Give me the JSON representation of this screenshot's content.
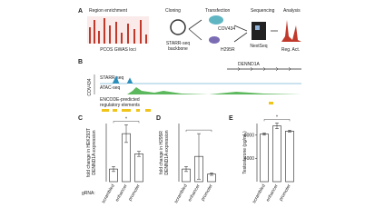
{
  "panel_a": {
    "label": "A",
    "steps": [
      "Region enrichment",
      "Cloning",
      "Transfection",
      "Sequencing",
      "Analysis"
    ],
    "gwas_caption": "PCOS GWAS loci",
    "backbone_caption": [
      "STARR-seq",
      "backbone"
    ],
    "cell_lines": [
      "COV434",
      "H295R"
    ],
    "sequencer": "NextSeq",
    "analysis_caption": "Reg. Act."
  },
  "panel_b": {
    "label": "B",
    "gene": "DENND1A",
    "cell_line": "COV434",
    "tracks": [
      "STARR-seq",
      "ATAC-seq"
    ],
    "encode_label": [
      "ENCODE-predicted",
      "regulatory elements"
    ]
  },
  "chart_data": [
    {
      "type": "bar",
      "label": "C",
      "ylabel": [
        "fold change in HEK293T",
        "DENND1A expression"
      ],
      "xlabel": "gRNA:",
      "categories": [
        "scrambled",
        "enhancer",
        "promoter"
      ],
      "values": [
        1,
        2.4,
        1.6
      ],
      "errors": [
        0.1,
        0.35,
        0.1
      ],
      "ylim": [
        0.5,
        2.8
      ],
      "color": "#ffffff",
      "annotation": "*"
    },
    {
      "type": "bar",
      "label": "D",
      "ylabel": [
        "fold change in H295R",
        "DENND1A expression"
      ],
      "categories": [
        "scrambled",
        "enhancer",
        "promoter"
      ],
      "values": [
        1,
        1.5,
        0.8
      ],
      "errors": [
        0.1,
        0.9,
        0.05
      ],
      "ylim": [
        0.5,
        2.8
      ],
      "color": "#ffffff"
    },
    {
      "type": "bar",
      "label": "E",
      "ylabel": [
        "Testosterone (pg/mL)"
      ],
      "categories": [
        "scrambled",
        "enhancer",
        "promoter"
      ],
      "values": [
        8200,
        9600,
        8700
      ],
      "errors": [
        200,
        500,
        150
      ],
      "ylim": [
        0,
        10000
      ],
      "yticks": [
        4000,
        8000
      ],
      "color": "#ffffff",
      "annotation": "*"
    }
  ]
}
